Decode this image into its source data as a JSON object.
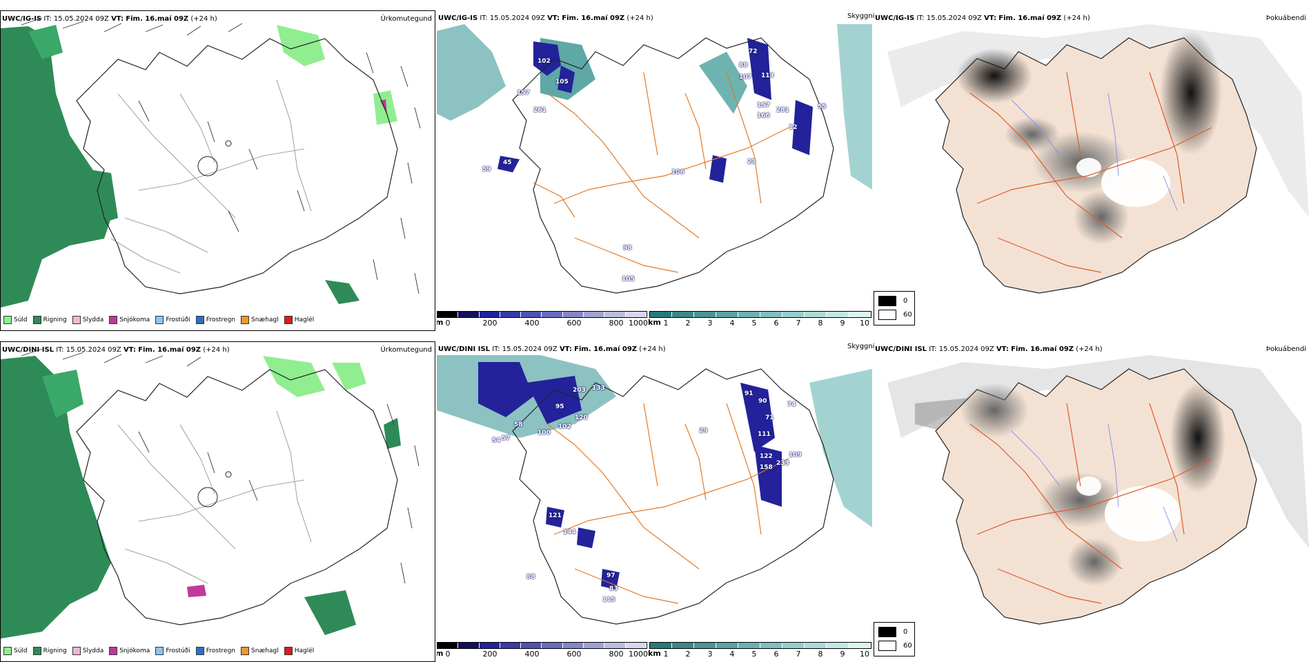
{
  "rows": [
    {
      "model": "UWC/IG-IS",
      "it_label": "IT:",
      "it_value": "15.05.2024 09Z",
      "vt_label": "VT:",
      "vt_value": "Fim. 16.maí 09Z",
      "lead": "(+24 h)"
    },
    {
      "model": "UWC/DINI ISL",
      "it_label": "IT:",
      "it_value": "15.05.2024 09Z",
      "vt_label": "VT:",
      "vt_value": "Fim. 16.maí 09Z",
      "lead": "(+24 h)"
    }
  ],
  "panel_titles": {
    "precip_type": "Úrkomutegund",
    "cloud": "Skyggni",
    "fog": "Þokuábendi"
  },
  "precip_legend": [
    {
      "label": "Súld",
      "color": "#90ee90"
    },
    {
      "label": "Rigning",
      "color": "#2e8b57"
    },
    {
      "label": "Slydda",
      "color": "#f4b6d8"
    },
    {
      "label": "Snjókoma",
      "color": "#c0399a"
    },
    {
      "label": "Frostúði",
      "color": "#8fc4f0"
    },
    {
      "label": "Frostregn",
      "color": "#2f6fc0"
    },
    {
      "label": "Snæhagl",
      "color": "#f0982e"
    },
    {
      "label": "Haglél",
      "color": "#e01a1a"
    }
  ],
  "ceiling_scale": {
    "unit": "m",
    "ticks": [
      "0",
      "200",
      "400",
      "600",
      "800",
      "1000"
    ],
    "colors": [
      "#000000",
      "#141060",
      "#23229a",
      "#3a3aa8",
      "#5052b0",
      "#6a6cbc",
      "#8486c8",
      "#a0a2d4",
      "#bcbee0",
      "#d8d8ec"
    ]
  },
  "visibility_scale": {
    "unit": "km",
    "ticks": [
      "1",
      "2",
      "3",
      "4",
      "5",
      "6",
      "7",
      "8",
      "9",
      "10"
    ],
    "colors": [
      "#2a7a78",
      "#3a8886",
      "#4a9694",
      "#5aa4a2",
      "#6cb2b0",
      "#80c0be",
      "#96cecc",
      "#acdcda",
      "#c4e8e6",
      "#dcf4f2"
    ]
  },
  "fog_legend": [
    {
      "label": "0",
      "color": "#000000"
    },
    {
      "label": "60",
      "color": "#ffffff"
    }
  ],
  "ceiling_labels_top": [
    "105",
    "102",
    "157",
    "261",
    "107",
    "88",
    "72",
    "59",
    "113",
    "45",
    "106",
    "98",
    "105",
    "23",
    "12",
    "55",
    "157",
    "166",
    "281"
  ],
  "ceiling_labels_bottom": [
    "203",
    "133",
    "95",
    "120",
    "102",
    "100",
    "57",
    "54",
    "58",
    "91",
    "90",
    "71",
    "74",
    "111",
    "122",
    "158",
    "233",
    "109",
    "121",
    "144",
    "97",
    "115",
    "83",
    "88",
    "29"
  ]
}
